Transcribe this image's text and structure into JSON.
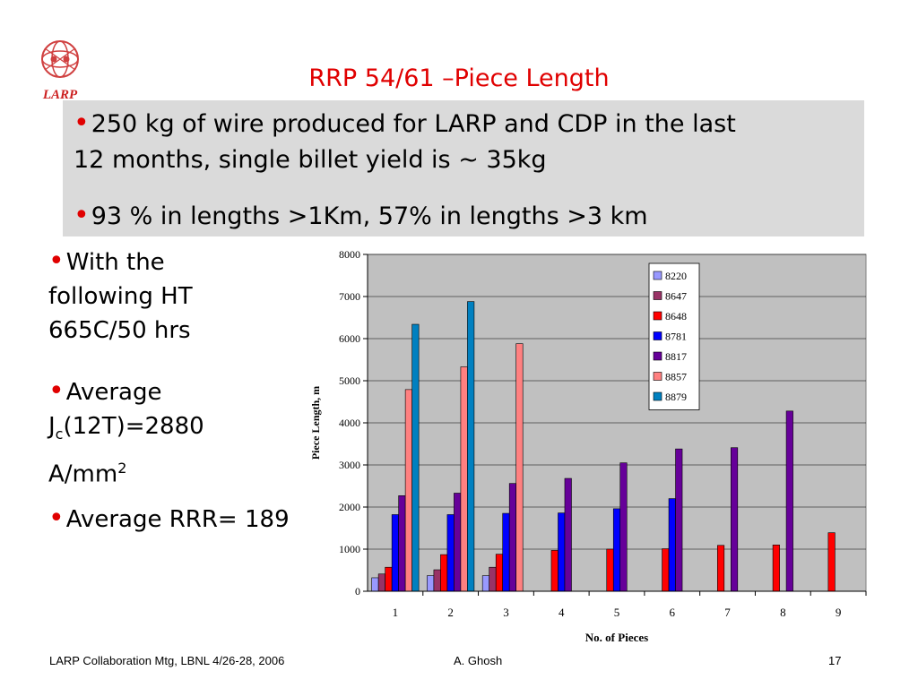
{
  "logo": {
    "text": "LARP"
  },
  "title": "RRP 54/61 –Piece Length",
  "top_bullets": [
    {
      "line1": "250 kg of wire produced for LARP and CDP in the last",
      "line2": "12 months, single billet yield is ~ 35kg"
    },
    {
      "line1": "93 % in lengths >1Km, 57% in lengths >3 km"
    }
  ],
  "left_bullets": {
    "b1": [
      "With the",
      "following HT",
      "665C/50 hrs"
    ],
    "b2": {
      "l1": "Average",
      "j": "J",
      "sub": "c",
      "rest": "(12T)=2880",
      "unit": "A/mm",
      "sup": "2"
    },
    "b3": "Average RRR= 189"
  },
  "footer": {
    "left": "LARP Collaboration Mtg, LBNL 4/26-28, 2006",
    "center": "A. Ghosh",
    "right": "17"
  },
  "colors": {
    "title": "#e00000",
    "bullet": "#e00000",
    "box": "#dadada",
    "plot_bg": "#c0c0c0"
  },
  "chart_data": {
    "type": "bar",
    "xlabel": "No. of Pieces",
    "ylabel": "Piece Length, m",
    "ylim": [
      0,
      8000
    ],
    "yticks": [
      0,
      1000,
      2000,
      3000,
      4000,
      5000,
      6000,
      7000,
      8000
    ],
    "categories": [
      "1",
      "2",
      "3",
      "4",
      "5",
      "6",
      "7",
      "8",
      "9"
    ],
    "legend_position": "top-right",
    "series": [
      {
        "name": "8220",
        "color": "#9999ff",
        "values": [
          320,
          370,
          370,
          null,
          null,
          null,
          null,
          null,
          null
        ]
      },
      {
        "name": "8647",
        "color": "#993366",
        "values": [
          410,
          510,
          570,
          null,
          null,
          null,
          null,
          null,
          null
        ]
      },
      {
        "name": "8648",
        "color": "#ff0000",
        "values": [
          570,
          870,
          880,
          970,
          1000,
          1010,
          1090,
          1100,
          1390
        ]
      },
      {
        "name": "8781",
        "color": "#0000ff",
        "values": [
          1820,
          1820,
          1850,
          1860,
          1960,
          2200,
          null,
          null,
          null
        ]
      },
      {
        "name": "8817",
        "color": "#660099",
        "values": [
          2270,
          2330,
          2560,
          2680,
          3050,
          3380,
          3410,
          4280,
          null
        ]
      },
      {
        "name": "8857",
        "color": "#ff8080",
        "values": [
          4790,
          5330,
          5880,
          null,
          null,
          null,
          null,
          null,
          null
        ]
      },
      {
        "name": "8879",
        "color": "#0080c0",
        "values": [
          6340,
          6880,
          null,
          null,
          null,
          null,
          null,
          null,
          null
        ]
      }
    ]
  }
}
